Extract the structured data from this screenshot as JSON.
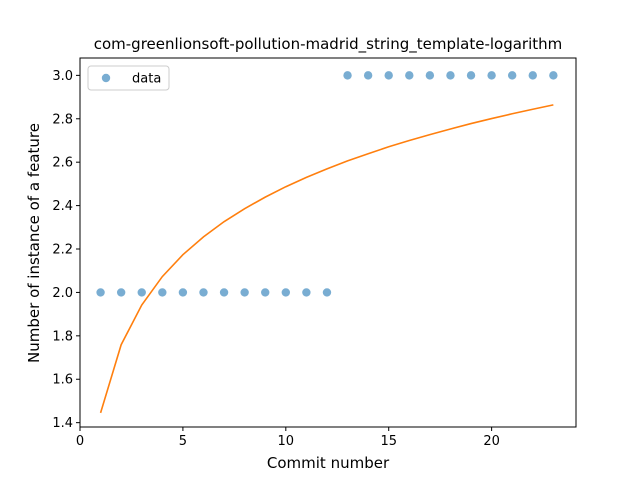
{
  "chart_data": {
    "type": "scatter",
    "title": "com-greenlionsoft-pollution-madrid_string_template-logarithm",
    "xlabel": "Commit number",
    "ylabel": "Number of instance of a feature",
    "xlim": [
      0,
      24.1
    ],
    "ylim": [
      1.38,
      3.08
    ],
    "xticks": [
      0,
      5,
      10,
      15,
      20
    ],
    "yticks": [
      1.4,
      1.6,
      1.8,
      2.0,
      2.2,
      2.4,
      2.6,
      2.8,
      3.0
    ],
    "grid": false,
    "legend": {
      "placement": "top-left",
      "entries": [
        "data"
      ]
    },
    "series": [
      {
        "name": "data",
        "kind": "scatter",
        "color": "#1f77b4",
        "x": [
          1,
          2,
          3,
          4,
          5,
          6,
          7,
          8,
          9,
          10,
          11,
          12,
          13,
          14,
          15,
          16,
          17,
          18,
          19,
          20,
          21,
          22,
          23
        ],
        "y": [
          2,
          2,
          2,
          2,
          2,
          2,
          2,
          2,
          2,
          2,
          2,
          2,
          3,
          3,
          3,
          3,
          3,
          3,
          3,
          3,
          3,
          3,
          3
        ]
      },
      {
        "kind": "line",
        "color": "#ff7f0e",
        "x": [
          1,
          2,
          3,
          4,
          5,
          6,
          7,
          8,
          9,
          10,
          11,
          12,
          13,
          14,
          15,
          16,
          17,
          18,
          19,
          20,
          21,
          22,
          23
        ],
        "y": [
          1.445,
          1.759,
          1.942,
          2.073,
          2.174,
          2.256,
          2.326,
          2.386,
          2.439,
          2.487,
          2.53,
          2.569,
          2.606,
          2.639,
          2.671,
          2.7,
          2.727,
          2.753,
          2.778,
          2.801,
          2.823,
          2.844,
          2.864
        ]
      }
    ]
  }
}
